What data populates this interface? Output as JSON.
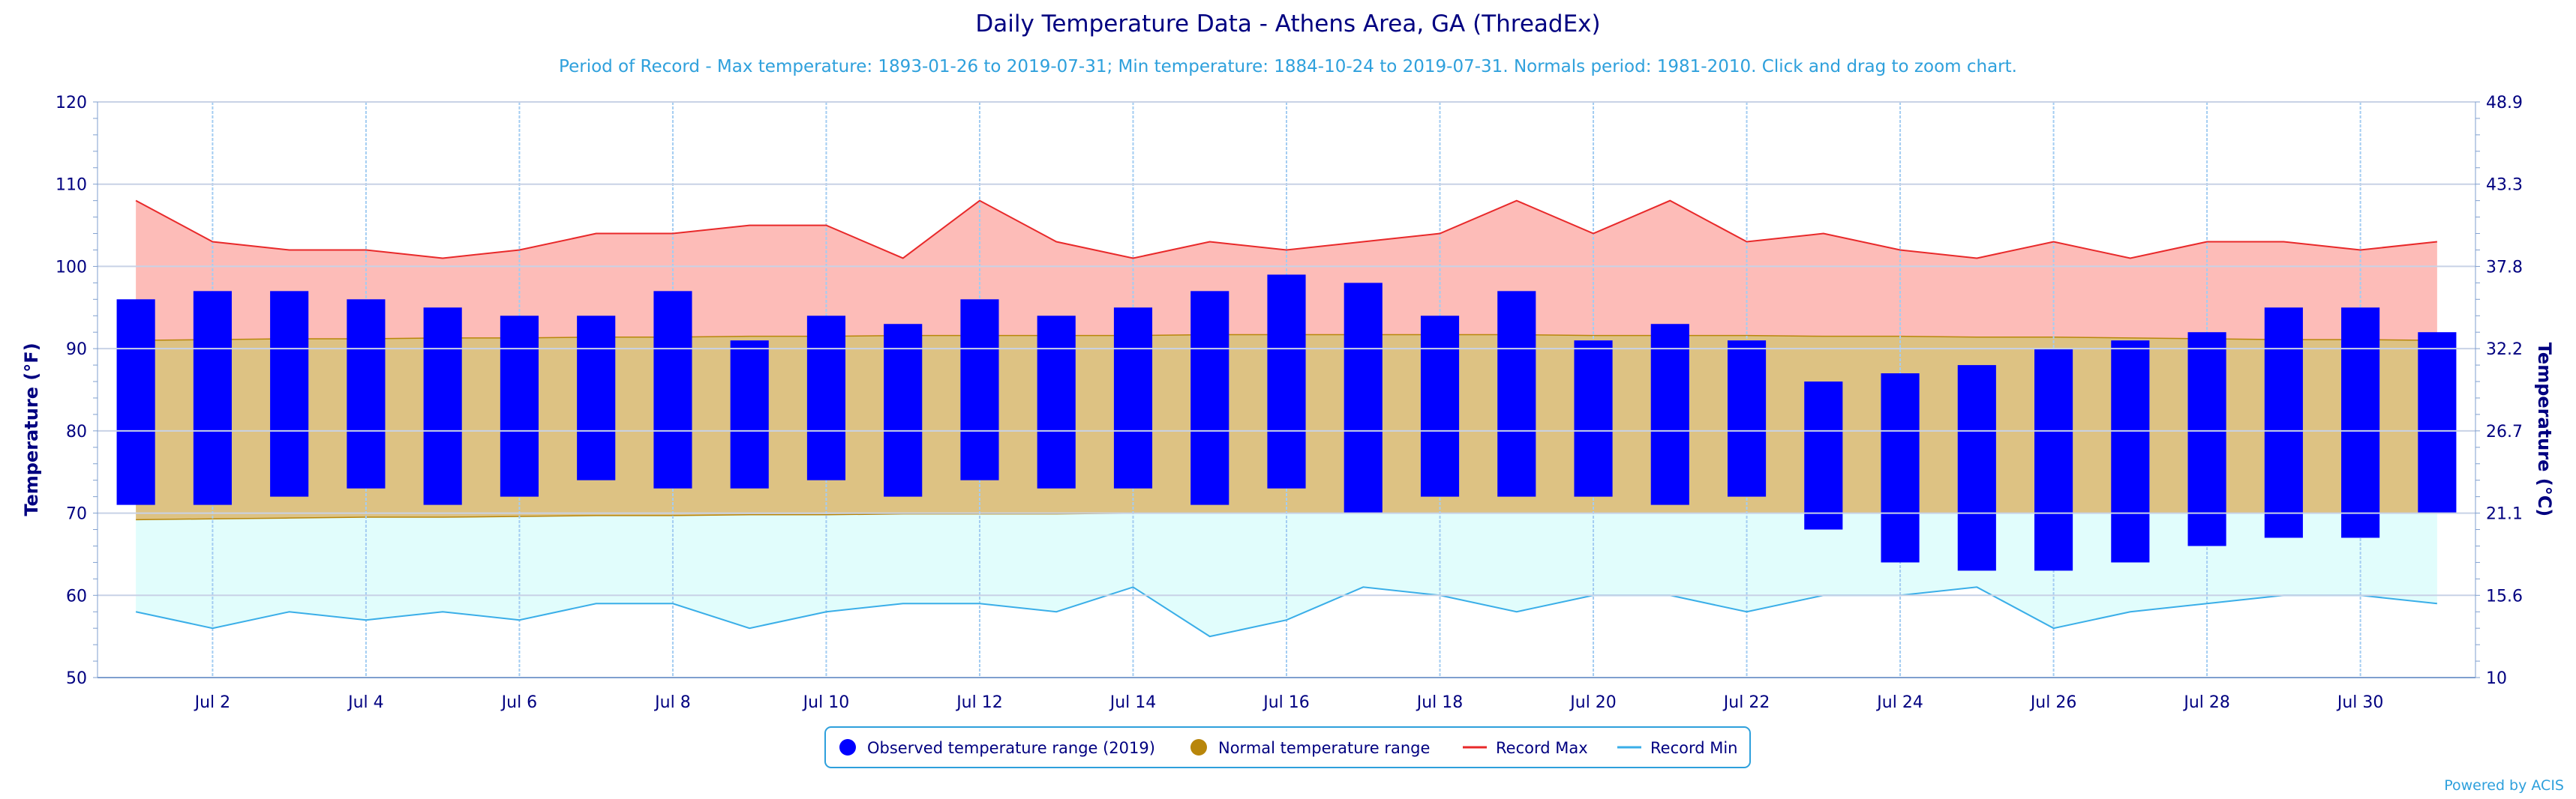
{
  "chart_data": {
    "type": "bar",
    "title": "Daily Temperature Data - Athens Area, GA (ThreadEx)",
    "subtitle": "Period of Record - Max temperature: 1893-01-26 to 2019-07-31; Min temperature: 1884-10-24 to 2019-07-31. Normals period: 1981-2010. Click and drag to zoom chart.",
    "ylabel": "Temperature (°F)",
    "ylabel_right": "Temperature (°C)",
    "ylim": [
      50,
      120
    ],
    "y_ticks": [
      "50",
      "60",
      "70",
      "80",
      "90",
      "100",
      "110",
      "120"
    ],
    "y_ticks_right": [
      "10",
      "15.6",
      "21.1",
      "26.7",
      "32.2",
      "37.8",
      "43.3",
      "48.9"
    ],
    "x": [
      1,
      2,
      3,
      4,
      5,
      6,
      7,
      8,
      9,
      10,
      11,
      12,
      13,
      14,
      15,
      16,
      17,
      18,
      19,
      20,
      21,
      22,
      23,
      24,
      25,
      26,
      27,
      28,
      29,
      30,
      31
    ],
    "x_tick_labels": [
      "Jul 2",
      "Jul 4",
      "Jul 6",
      "Jul 8",
      "Jul 10",
      "Jul 12",
      "Jul 14",
      "Jul 16",
      "Jul 18",
      "Jul 20",
      "Jul 22",
      "Jul 24",
      "Jul 26",
      "Jul 28",
      "Jul 30"
    ],
    "x_tick_days": [
      2,
      4,
      6,
      8,
      10,
      12,
      14,
      16,
      18,
      20,
      22,
      24,
      26,
      28,
      30
    ],
    "grid": true,
    "legend_position": "bottom-center",
    "series": [
      {
        "name": "Observed temperature range (2019)",
        "kind": "range-bar",
        "color": "#0000ff",
        "high": [
          96,
          97,
          97,
          96,
          95,
          94,
          94,
          97,
          91,
          94,
          93,
          96,
          94,
          95,
          97,
          99,
          98,
          94,
          97,
          91,
          93,
          91,
          86,
          87,
          88,
          90,
          91,
          92,
          95,
          95,
          92
        ],
        "low": [
          71,
          71,
          72,
          73,
          71,
          72,
          74,
          73,
          73,
          74,
          72,
          74,
          73,
          73,
          71,
          73,
          70,
          72,
          72,
          72,
          71,
          72,
          68,
          64,
          63,
          63,
          64,
          66,
          67,
          67,
          70
        ]
      },
      {
        "name": "Normal temperature range",
        "kind": "range-area",
        "color": "#b8860b",
        "fill": "#ddc283",
        "high": [
          91.0,
          91.1,
          91.2,
          91.2,
          91.3,
          91.3,
          91.4,
          91.4,
          91.5,
          91.5,
          91.6,
          91.6,
          91.6,
          91.6,
          91.7,
          91.7,
          91.7,
          91.7,
          91.7,
          91.6,
          91.6,
          91.6,
          91.5,
          91.5,
          91.4,
          91.4,
          91.3,
          91.2,
          91.1,
          91.1,
          91.0
        ],
        "low": [
          69.2,
          69.3,
          69.4,
          69.5,
          69.5,
          69.6,
          69.7,
          69.7,
          69.8,
          69.8,
          69.9,
          69.9,
          69.9,
          70.0,
          70.0,
          70.0,
          70.0,
          70.0,
          70.0,
          70.0,
          70.0,
          70.0,
          70.0,
          70.0,
          70.0,
          70.0,
          70.0,
          70.0,
          70.0,
          70.0,
          70.0
        ]
      },
      {
        "name": "Record Max",
        "kind": "line",
        "color": "#e8292a",
        "fill": "#fdbcb8",
        "values": [
          108,
          103,
          102,
          102,
          101,
          102,
          104,
          104,
          105,
          105,
          101,
          108,
          103,
          101,
          103,
          102,
          103,
          104,
          108,
          104,
          108,
          103,
          104,
          102,
          101,
          103,
          101,
          103,
          103,
          102,
          103
        ]
      },
      {
        "name": "Record Min",
        "kind": "line",
        "color": "#3aaee8",
        "fill": "#e1fdfc",
        "values": [
          58,
          56,
          58,
          57,
          58,
          57,
          59,
          59,
          56,
          58,
          59,
          59,
          58,
          61,
          55,
          57,
          61,
          60,
          58,
          60,
          60,
          58,
          60,
          60,
          61,
          56,
          58,
          59,
          60,
          60,
          59
        ]
      }
    ]
  },
  "footer": {
    "credit": "Powered by ACIS"
  },
  "colors": {
    "title": "#000080",
    "subtitle": "#2ea0dc",
    "axis_text": "#000080",
    "grid_horizontal": "#c8d2e6",
    "grid_vertical": "#a4cdf2",
    "axis_line": "#7f9fcf"
  }
}
